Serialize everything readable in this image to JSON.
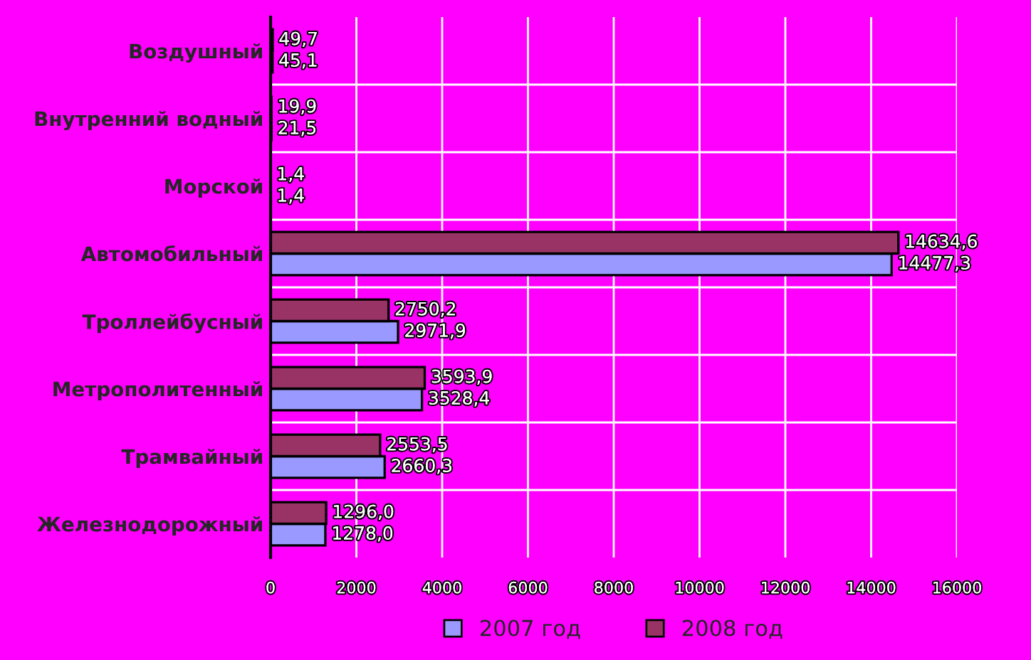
{
  "chart_data": {
    "type": "bar",
    "orientation": "horizontal",
    "categories": [
      "Воздушный",
      "Внутренний водный",
      "Морской",
      "Автомобильный",
      "Троллейбусный",
      "Метрополитенный",
      "Трамвайный",
      "Железнодорожный"
    ],
    "series": [
      {
        "name": "2007 год",
        "color": "#9999ff",
        "values": [
          45.1,
          21.5,
          1.4,
          14477.3,
          2971.9,
          3528.4,
          2660.3,
          1278.0
        ],
        "value_labels": [
          "45,1",
          "21,5",
          "1,4",
          "14477,3",
          "2971,9",
          "3528,4",
          "2660,3",
          "1278,0"
        ]
      },
      {
        "name": "2008 год",
        "color": "#993366",
        "values": [
          49.7,
          19.9,
          1.4,
          14634.6,
          2750.2,
          3593.9,
          2553.5,
          1296.0
        ],
        "value_labels": [
          "49,7",
          "19,9",
          "1,4",
          "14634,6",
          "2750,2",
          "3593,9",
          "2553,5",
          "1296,0"
        ]
      }
    ],
    "xlim": [
      0,
      16000
    ],
    "xticks": [
      0,
      2000,
      4000,
      6000,
      8000,
      10000,
      12000,
      14000,
      16000
    ],
    "grid": true,
    "legend": "bottom"
  }
}
